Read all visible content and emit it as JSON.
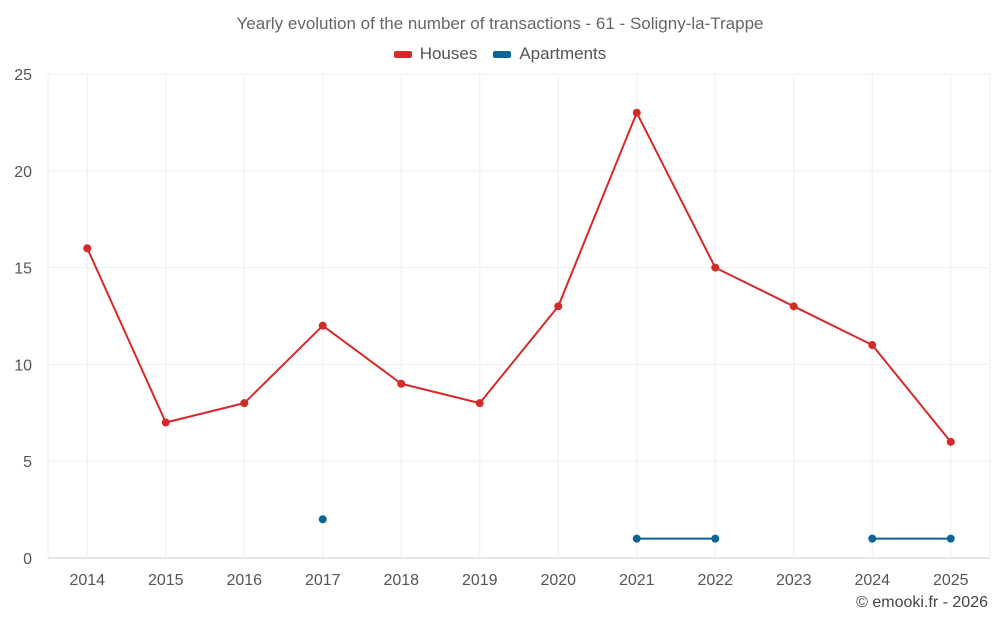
{
  "chart_data": {
    "type": "line",
    "title": "Yearly evolution of the number of transactions - 61 - Soligny-la-Trappe",
    "categories": [
      "2014",
      "2015",
      "2016",
      "2017",
      "2018",
      "2019",
      "2020",
      "2021",
      "2022",
      "2023",
      "2024",
      "2025"
    ],
    "ylim": [
      0,
      25
    ],
    "yticks": [
      0,
      5,
      10,
      15,
      20,
      25
    ],
    "grid": true,
    "legend_position": "top-center",
    "series": [
      {
        "name": "Houses",
        "color": "#d42a2a",
        "values": [
          16,
          7,
          8,
          12,
          9,
          8,
          13,
          23,
          15,
          13,
          11,
          6
        ]
      },
      {
        "name": "Apartments",
        "color": "#0b6496",
        "values": [
          null,
          null,
          null,
          2,
          null,
          null,
          null,
          1,
          1,
          null,
          1,
          1
        ]
      }
    ]
  },
  "credit": "© emooki.fr - 2026"
}
